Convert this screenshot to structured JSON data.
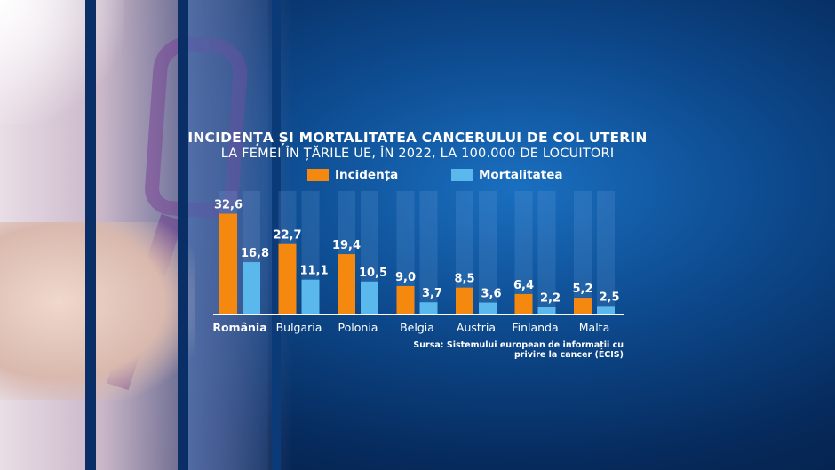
{
  "chart_data": {
    "type": "bar",
    "title": "INCIDENȚA ȘI MORTALITATEA CANCERULUI DE COL UTERIN",
    "subtitle": "LA FEMEI ÎN ȚĂRILE UE, ÎN 2022, LA 100.000 DE LOCUITORI",
    "categories": [
      "România",
      "Bulgaria",
      "Polonia",
      "Belgia",
      "Austria",
      "Finlanda",
      "Malta"
    ],
    "series": [
      {
        "name": "Incidența",
        "color": "#f5890f",
        "values": [
          32.6,
          22.7,
          19.4,
          9.0,
          8.5,
          6.4,
          5.2
        ],
        "labels": [
          "32,6",
          "22,7",
          "19,4",
          "9,0",
          "8,5",
          "6,4",
          "5,2"
        ]
      },
      {
        "name": "Mortalitatea",
        "color": "#5ab8ec",
        "values": [
          16.8,
          11.1,
          10.5,
          3.7,
          3.6,
          2.2,
          2.5
        ],
        "labels": [
          "16,8",
          "11,1",
          "10,5",
          "3,7",
          "3,6",
          "2,2",
          "2,5"
        ]
      }
    ],
    "ylim": [
      0,
      40
    ],
    "legend": "top",
    "grid": false,
    "source": "Sursa: Sistemului european de informații cu privire la cancer (ECIS)"
  }
}
